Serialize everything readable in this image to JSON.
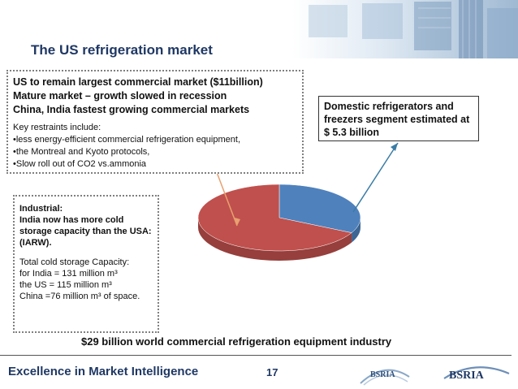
{
  "slide": {
    "title": "The US refrigeration market",
    "page_number": "17"
  },
  "market_box": {
    "lines": [
      "US to remain largest commercial market ($11billion)",
      "Mature market – growth slowed in recession",
      "China, India fastest growing commercial markets"
    ],
    "restraints_heading": "Key restraints include:",
    "restraints": [
      "•less energy-efficient commercial refrigeration equipment,",
      "•the Montreal and Kyoto protocols,",
      "•Slow roll out of CO2 vs.ammonia"
    ]
  },
  "domestic_box": {
    "text": "Domestic refrigerators and freezers segment estimated at $ 5.3 billion"
  },
  "industrial_box": {
    "heading": "Industrial:",
    "bold_text": "India now has more cold storage capacity than the USA: (IARW).",
    "capacity_heading": "Total cold storage Capacity:",
    "lines": [
      "for India = 131 million m³",
      "the US = 115 million m³",
      "China =76 million m³ of space."
    ]
  },
  "footer_note": "$29 billion world commercial refrigeration equipment industry",
  "footer": {
    "tagline": "Excellence in Market Intelligence",
    "logo_small": "BSRIA",
    "logo_large": "BSRIA"
  },
  "colors": {
    "title": "#1f3864",
    "pie_commercial": "#c0504d",
    "pie_domestic": "#4f81bd",
    "arrow_commercial": "#e8a070",
    "arrow_domestic": "#3a7ca5"
  },
  "chart_data": {
    "type": "pie",
    "slices": [
      {
        "value": 5.3
      },
      {
        "value": 11
      }
    ]
  }
}
